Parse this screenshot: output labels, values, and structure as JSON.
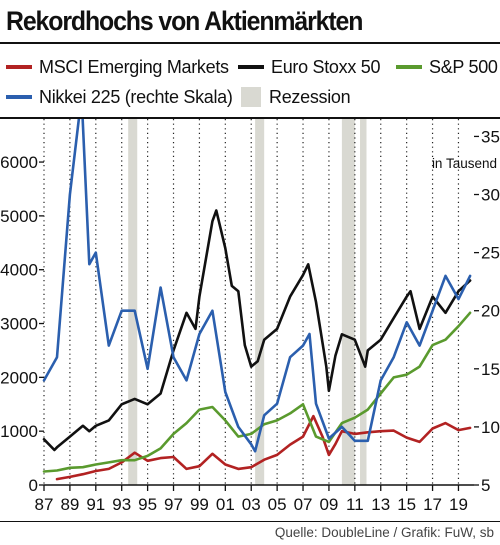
{
  "title": "Rekordhochs von Aktienmärkten",
  "source": "Quelle: DoubleLine / Grafik: FuW, sb",
  "legend": [
    {
      "label": "MSCI Emerging Markets",
      "color": "#b22222",
      "kind": "line"
    },
    {
      "label": "Euro Stoxx 50",
      "color": "#111111",
      "kind": "line"
    },
    {
      "label": "S&P 500",
      "color": "#5a9a2e",
      "kind": "line"
    },
    {
      "label": "Nikkei 225 (rechte Skala)",
      "color": "#2b5fae",
      "kind": "line"
    },
    {
      "label": "Rezession",
      "color": "#d9d9d2",
      "kind": "box"
    }
  ],
  "chart_data": {
    "type": "line",
    "x_tick_labels": [
      "87",
      "89",
      "91",
      "93",
      "95",
      "97",
      "99",
      "01",
      "03",
      "05",
      "07",
      "09",
      "11",
      "13",
      "15",
      "17",
      "19"
    ],
    "x_ticks": [
      1987,
      1989,
      1991,
      1993,
      1995,
      1997,
      1999,
      2001,
      2003,
      2005,
      2007,
      2009,
      2011,
      2013,
      2015,
      2017,
      2019
    ],
    "xlim": [
      1987,
      2020.2
    ],
    "ylim_left": [
      0,
      6800
    ],
    "yticks_left": [
      0,
      1000,
      2000,
      3000,
      4000,
      5000,
      6000
    ],
    "ylim_right": [
      5,
      36.5
    ],
    "yticks_right": [
      5,
      10,
      15,
      20,
      25,
      30,
      35
    ],
    "right_axis_unit": "in Tausend",
    "grid": "dotted vertical at every second year",
    "recessions": [
      [
        1993.5,
        1994.2
      ],
      [
        2003.3,
        2004.0
      ],
      [
        2010.0,
        2011.0
      ],
      [
        2011.4,
        2011.9
      ]
    ],
    "series": [
      {
        "name": "MSCI Emerging Markets",
        "axis": "left",
        "color": "#b22222",
        "x": [
          1988,
          1989,
          1990,
          1991,
          1992,
          1993,
          1994,
          1995,
          1996,
          1997,
          1998,
          1999,
          2000,
          2001,
          2002,
          2003,
          2004,
          2005,
          2006,
          2007,
          2007.8,
          2008.5,
          2009,
          2009.5,
          2010,
          2011,
          2012,
          2013,
          2014,
          2015,
          2016,
          2017,
          2018,
          2019,
          2019.9
        ],
        "y": [
          110,
          150,
          200,
          260,
          300,
          420,
          600,
          450,
          500,
          520,
          300,
          350,
          580,
          380,
          300,
          330,
          470,
          560,
          750,
          900,
          1280,
          900,
          560,
          760,
          1000,
          950,
          980,
          1000,
          1010,
          880,
          800,
          1050,
          1150,
          1020,
          1060
        ]
      },
      {
        "name": "Euro Stoxx 50",
        "axis": "left",
        "color": "#111111",
        "x": [
          1987,
          1987.8,
          1988,
          1989,
          1990,
          1990.5,
          1991,
          1992,
          1993,
          1994,
          1995,
          1996,
          1997,
          1998,
          1998.7,
          1999,
          2000,
          2000.3,
          2001,
          2001.5,
          2002,
          2002.5,
          2003,
          2003.5,
          2004,
          2005,
          2006,
          2007,
          2007.4,
          2008,
          2008.8,
          2009,
          2009.5,
          2010,
          2011,
          2011.8,
          2012,
          2013,
          2014,
          2015,
          2015.3,
          2016,
          2017,
          2018,
          2019,
          2019.9
        ],
        "y": [
          850,
          650,
          700,
          900,
          1100,
          1000,
          1100,
          1200,
          1500,
          1600,
          1500,
          1700,
          2500,
          3200,
          2900,
          3500,
          4900,
          5100,
          4400,
          3700,
          3600,
          2600,
          2200,
          2300,
          2700,
          2900,
          3500,
          3900,
          4100,
          3400,
          2200,
          1750,
          2400,
          2800,
          2700,
          2200,
          2500,
          2700,
          3100,
          3500,
          3600,
          2900,
          3500,
          3200,
          3600,
          3800
        ]
      },
      {
        "name": "S&P 500",
        "axis": "left",
        "color": "#5a9a2e",
        "x": [
          1987,
          1988,
          1989,
          1990,
          1991,
          1992,
          1993,
          1994,
          1995,
          1996,
          1997,
          1998,
          1999,
          2000,
          2001,
          2002,
          2003,
          2004,
          2005,
          2006,
          2007,
          2008,
          2009,
          2010,
          2011,
          2012,
          2013,
          2014,
          2015,
          2016,
          2017,
          2018,
          2019,
          2019.9
        ],
        "y": [
          250,
          270,
          320,
          330,
          380,
          420,
          460,
          460,
          540,
          680,
          950,
          1150,
          1400,
          1450,
          1200,
          900,
          950,
          1130,
          1200,
          1330,
          1500,
          900,
          800,
          1150,
          1250,
          1400,
          1700,
          2000,
          2050,
          2200,
          2600,
          2700,
          2950,
          3200
        ]
      },
      {
        "name": "Nikkei 225 (rechte Skala)",
        "axis": "right",
        "color": "#2b5fae",
        "x": [
          1987,
          1988,
          1989,
          1989.9,
          1990.5,
          1991,
          1992,
          1993,
          1994,
          1995,
          1996,
          1997,
          1998,
          1999,
          2000,
          2001,
          2002,
          2003,
          2003.3,
          2004,
          2005,
          2006,
          2007,
          2007.5,
          2008,
          2009,
          2010,
          2011,
          2012,
          2013,
          2014,
          2015,
          2016,
          2017,
          2018,
          2019,
          2019.9
        ],
        "y": [
          14,
          16,
          30,
          38.5,
          24,
          25,
          17,
          20,
          20,
          15,
          22,
          16,
          14,
          18,
          20,
          13,
          10,
          8.5,
          7.9,
          11,
          12,
          16,
          17,
          18,
          12,
          9,
          10,
          8.8,
          8.8,
          14,
          16,
          19,
          17,
          20,
          23,
          21,
          23
        ]
      }
    ]
  }
}
